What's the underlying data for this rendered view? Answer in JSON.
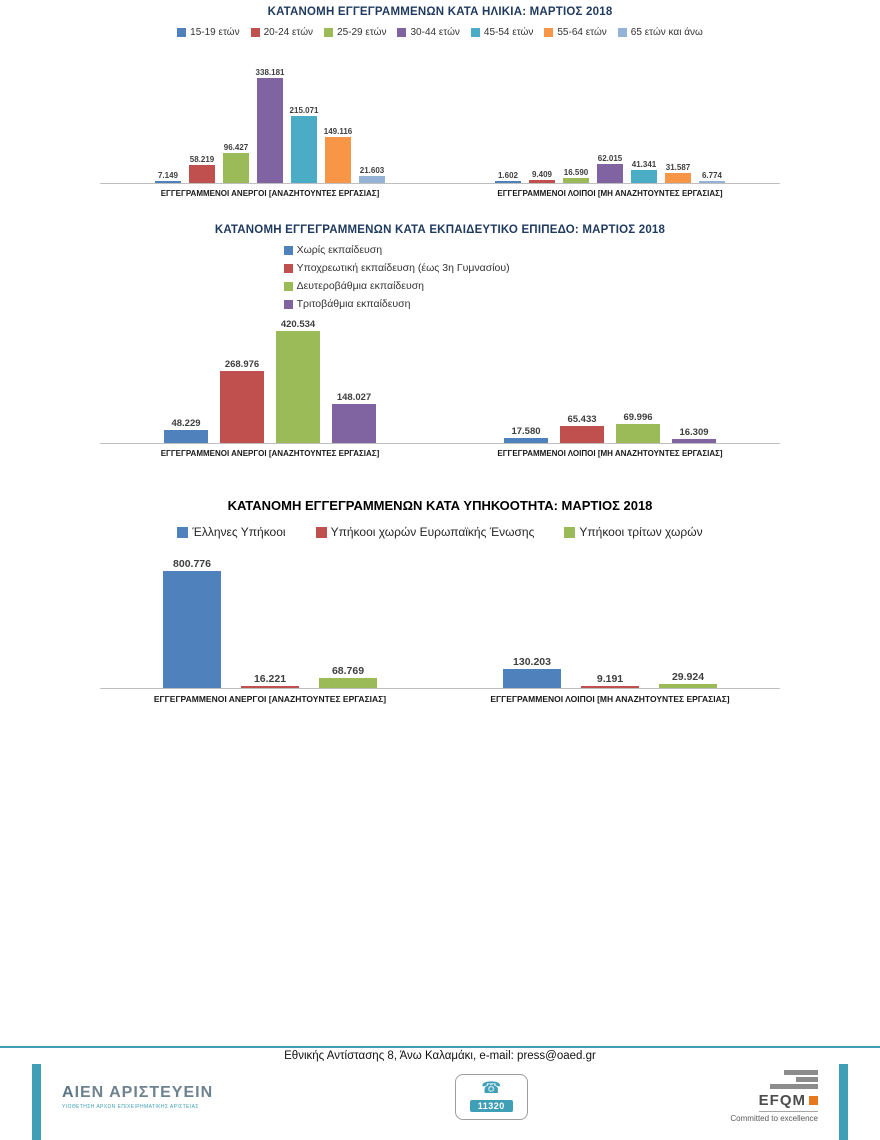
{
  "footer": {
    "address": "Εθνικής Αντίστασης 8,  Άνω Καλαμάκι, e-mail: press@oaed.gr",
    "accent_color": "#3f9fb7",
    "logo_left": {
      "title": "ΑΙΕΝ ΑΡΙΣΤΕΥΕΙΝ",
      "subtitle": "ΥΙΟΘΕΤΗΣΗ ΑΡΧΩΝ ΕΠΙΧΕΙΡΗΜΑΤΙΚΗΣ ΑΡΙΣΤΕΙΑΣ"
    },
    "phone_number": "11320",
    "logo_right": {
      "title": "EFQM",
      "subtitle": "Committed to excellence"
    }
  },
  "chart_data": [
    {
      "type": "bar",
      "title": "ΚΑΤΑΝΟΜΗ ΕΓΓΕΓΡΑΜΜΕΝΩΝ ΚΑΤΑ ΗΛΙΚΙΑ: ΜΑΡΤΙΟΣ  2018",
      "legend_position": "top-horizontal",
      "grid": false,
      "series": [
        {
          "name": "15-19 ετών",
          "color": "#4f81bd"
        },
        {
          "name": "20-24 ετών",
          "color": "#c0504d"
        },
        {
          "name": "25-29 ετών",
          "color": "#9bbb59"
        },
        {
          "name": "30-44 ετών",
          "color": "#8064a2"
        },
        {
          "name": "45-54 ετών",
          "color": "#4bacc6"
        },
        {
          "name": "55-64 ετών",
          "color": "#f79646"
        },
        {
          "name": "65 ετών και άνω",
          "color": "#95b3d7"
        }
      ],
      "groups": [
        {
          "category": "ΕΓΓΕΓΡΑΜΜΕΝΟΙ ΑΝΕΡΓΟΙ [ΑΝΑΖΗΤΟΥΝΤΕΣ ΕΡΓΑΣΙΑΣ]",
          "values": [
            "7.149",
            "58.219",
            "96.427",
            "338.181",
            "215.071",
            "149.116",
            "21.603"
          ]
        },
        {
          "category": "ΕΓΓΕΓΡΑΜΜΕΝΟΙ ΛΟΙΠΟΙ [ΜΗ ΑΝΑΖΗΤΟΥΝΤΕΣ ΕΡΓΑΣΙΑΣ]",
          "values": [
            "1.602",
            "9.409",
            "16.590",
            "62.015",
            "41.341",
            "31.587",
            "6.774"
          ]
        }
      ]
    },
    {
      "type": "bar",
      "title": "ΚΑΤΑΝΟΜΗ ΕΓΓΕΓΡΑΜΜΕΝΩΝ ΚΑΤΑ ΕΚΠΑΙΔΕΥΤΙΚΟ ΕΠΙΠΕΔΟ:  ΜΑΡΤΙΟΣ 2018",
      "legend_position": "center-vertical-block",
      "grid": false,
      "series": [
        {
          "name": "Χωρίς εκπαίδευση",
          "color": "#4f81bd"
        },
        {
          "name": "Υποχρεωτική εκπαίδευση (έως 3η Γυμνασίου)",
          "color": "#c0504d"
        },
        {
          "name": "Δευτεροβάθμια εκπαίδευση",
          "color": "#9bbb59"
        },
        {
          "name": "Τριτοβάθμια εκπαίδευση",
          "color": "#8064a2"
        }
      ],
      "groups": [
        {
          "category": "ΕΓΓΕΓΡΑΜΜΕΝΟΙ ΑΝΕΡΓΟΙ [ΑΝΑΖΗΤΟΥΝΤΕΣ ΕΡΓΑΣΙΑΣ]",
          "values": [
            "48.229",
            "268.976",
            "420.534",
            "148.027"
          ]
        },
        {
          "category": "ΕΓΓΕΓΡΑΜΜΕΝΟΙ ΛΟΙΠΟΙ [ΜΗ ΑΝΑΖΗΤΟΥΝΤΕΣ ΕΡΓΑΣΙΑΣ]",
          "values": [
            "17.580",
            "65.433",
            "69.996",
            "16.309"
          ]
        }
      ]
    },
    {
      "type": "bar",
      "title": "ΚΑΤΑΝΟΜΗ ΕΓΓΕΓΡΑΜΜΕΝΩΝ ΚΑΤΑ ΥΠΗΚΟΟΤΗΤΑ: ΜΑΡΤΙΟΣ 2018",
      "legend_position": "top-horizontal",
      "grid": false,
      "series": [
        {
          "name": "Έλληνες Υπήκοοι",
          "color": "#4f81bd"
        },
        {
          "name": "Υπήκοοι χωρών Ευρωπαϊκής Ένωσης",
          "color": "#c0504d"
        },
        {
          "name": "Υπήκοοι τρίτων χωρών",
          "color": "#9bbb59"
        }
      ],
      "groups": [
        {
          "category": "ΕΓΓΕΓΡΑΜΜΕΝΟΙ ΑΝΕΡΓΟΙ [ΑΝΑΖΗΤΟΥΝΤΕΣ ΕΡΓΑΣΙΑΣ]",
          "values": [
            "800.776",
            "16.221",
            "68.769"
          ]
        },
        {
          "category": "ΕΓΓΕΓΡΑΜΜΕΝΟΙ ΛΟΙΠΟΙ [ΜΗ ΑΝΑΖΗΤΟΥΝΤΕΣ ΕΡΓΑΣΙΑΣ]",
          "values": [
            "130.203",
            "9.191",
            "29.924"
          ]
        }
      ]
    }
  ]
}
